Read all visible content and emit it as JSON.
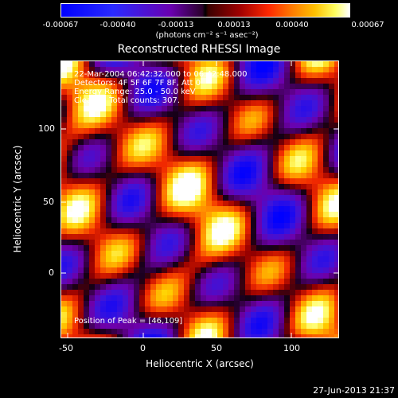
{
  "colorbar": {
    "ticks": [
      "-0.00067",
      "-0.00040",
      "-0.00013",
      "0.00013",
      "0.00040",
      "0.00067"
    ],
    "units": "(photons cm⁻² s⁻¹ asec⁻²)"
  },
  "title": "Reconstructed RHESSI Image",
  "annotations": {
    "time": "22-Mar-2004 06:42:32.000 to 06:42:48.000",
    "detectors": "Detectors: 4F 5F 6F 7F 8F, Att 0",
    "energy": "Energy Range: 25.0 - 50.0 keV",
    "clean": "Clean     Total counts: 307.",
    "peak": "Position of Peak = [46,109]"
  },
  "axes": {
    "xlabel": "Heliocentric X (arcsec)",
    "ylabel": "Heliocentric Y (arcsec)",
    "xticks": [
      "-50",
      "0",
      "50",
      "100"
    ],
    "yticks": [
      "0",
      "50",
      "100"
    ]
  },
  "footer": "27-Jun-2013 21:37",
  "colors": {
    "positive_max": "#ffffff",
    "negative_max": "#0000ff",
    "background": "#000000"
  }
}
